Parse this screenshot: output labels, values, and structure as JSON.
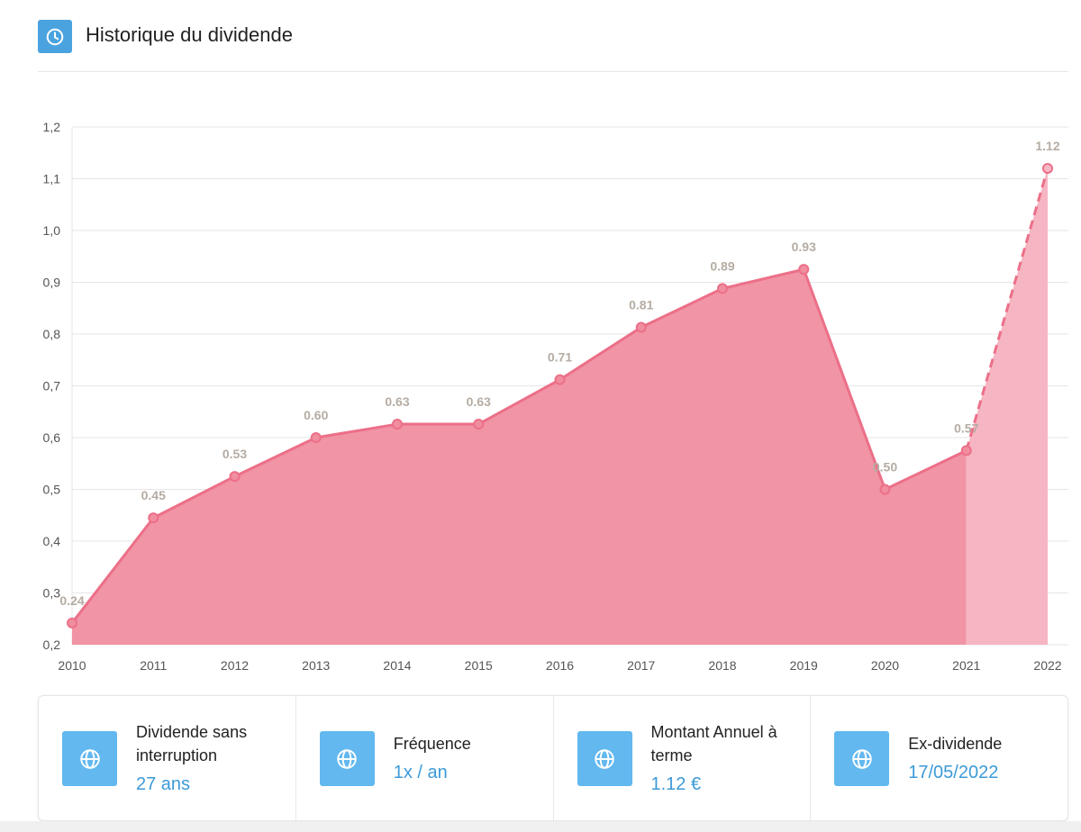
{
  "header": {
    "title": "Historique du dividende",
    "icon": "clock-icon"
  },
  "chart_data": {
    "type": "area",
    "title": "",
    "xlabel": "",
    "ylabel": "",
    "categories": [
      "2010",
      "2011",
      "2012",
      "2013",
      "2014",
      "2015",
      "2016",
      "2017",
      "2018",
      "2019",
      "2020",
      "2021",
      "2022"
    ],
    "series": [
      {
        "values": [
          0.242,
          0.445,
          0.525,
          0.6,
          0.626,
          0.626,
          0.712,
          0.813,
          0.888,
          0.925,
          0.5,
          0.575,
          1.12
        ],
        "labels": [
          "0.24",
          "0.45",
          "0.53",
          "0.60",
          "0.63",
          "0.63",
          "0.71",
          "0.81",
          "0.89",
          "0.93",
          "0.50",
          "0.57",
          "1.12"
        ],
        "projected_from_index": 11
      }
    ],
    "ylim": [
      0.2,
      1.2
    ],
    "yticks": [
      "0,2",
      "0,3",
      "0,4",
      "0,5",
      "0,6",
      "0,7",
      "0,8",
      "0,9",
      "1,0",
      "1,1",
      "1,2"
    ],
    "grid": true,
    "colors": {
      "fill": "#f08ea0",
      "line": "#ec6f88",
      "projected_fill": "#f6b5c2",
      "label": "#b5aca3"
    }
  },
  "cards": [
    {
      "label": "Dividende sans interruption",
      "value": "27 ans",
      "icon": "globe-icon"
    },
    {
      "label": "Fréquence",
      "value": "1x / an",
      "icon": "globe-icon"
    },
    {
      "label": "Montant Annuel à terme",
      "value": "1.12 €",
      "icon": "globe-icon"
    },
    {
      "label": "Ex-dividende",
      "value": "17/05/2022",
      "icon": "globe-icon"
    }
  ]
}
